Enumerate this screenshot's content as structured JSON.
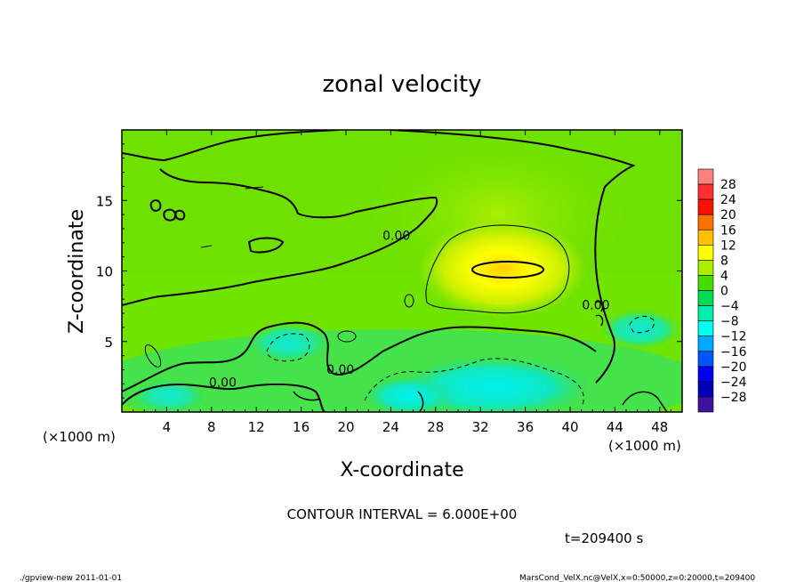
{
  "chart_data": {
    "type": "heatmap",
    "title": "zonal velocity",
    "xlabel": "X-coordinate",
    "ylabel": "Z-coordinate",
    "x_unit_left": "(×1000 m)",
    "x_unit_right": "(×1000 m)",
    "xlim": [
      0,
      50
    ],
    "ylim": [
      0,
      20
    ],
    "x_ticks": [
      4,
      8,
      12,
      16,
      20,
      24,
      28,
      32,
      36,
      40,
      44,
      48
    ],
    "y_ticks": [
      5,
      10,
      15
    ],
    "colorbar": {
      "levels": [
        28,
        24,
        20,
        16,
        12,
        8,
        4,
        0,
        -4,
        -8,
        -12,
        -16,
        -20,
        -24,
        -28
      ],
      "colors": [
        "#ff8080",
        "#ff3030",
        "#ff1000",
        "#ff7000",
        "#ffc000",
        "#ffff00",
        "#aaee00",
        "#44dd00",
        "#00dd55",
        "#00eeaa",
        "#00ffee",
        "#00aaff",
        "#0055ff",
        "#0000ee",
        "#0000bb",
        "#4010a0"
      ]
    },
    "contour_labels": [
      {
        "text": "0.00",
        "x": 24.5,
        "y": 12.2
      },
      {
        "text": "0.00",
        "x": 42.3,
        "y": 7.3
      },
      {
        "text": "0.00",
        "x": 9.0,
        "y": 1.8
      },
      {
        "text": "0.00",
        "x": 19.5,
        "y": 2.7
      }
    ],
    "max_region": {
      "center_x": 34,
      "center_y": 10.1,
      "value": 12
    }
  },
  "contour_interval": "CONTOUR INTERVAL = 6.000E+00",
  "time_label": "t=209400 s",
  "footer_left": "./gpview-new   2011-01-01",
  "footer_right": "MarsCond_VelX.nc@VelX,x=0:50000,z=0:20000,t=209400"
}
